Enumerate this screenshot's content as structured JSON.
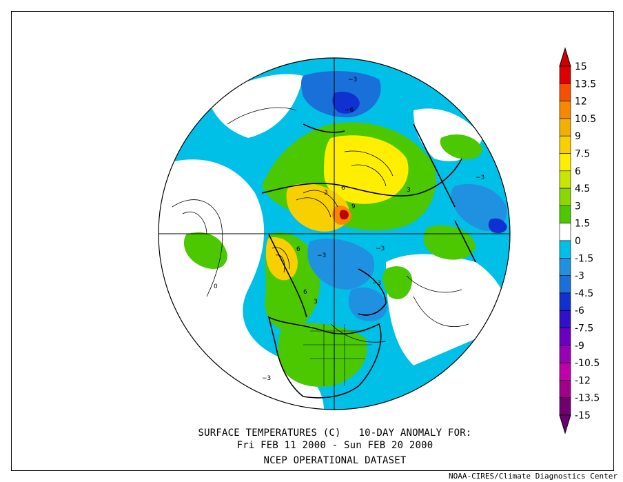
{
  "caption": {
    "line1": "SURFACE TEMPERATURES (C)   10-DAY ANOMALY FOR:",
    "line2": "Fri FEB 11 2000 - Sun FEB 20 2000",
    "line3": "NCEP OPERATIONAL DATASET"
  },
  "credit": "NOAA-CIRES/Climate Diagnostics Center",
  "colorbar": {
    "levels": [
      {
        "label": "15",
        "color": "#a00000"
      },
      {
        "label": "13.5",
        "color": "#dc0000"
      },
      {
        "label": "12",
        "color": "#f45000"
      },
      {
        "label": "10.5",
        "color": "#f88800"
      },
      {
        "label": "9",
        "color": "#f4b000"
      },
      {
        "label": "7.5",
        "color": "#f8d000"
      },
      {
        "label": "6",
        "color": "#ffee00"
      },
      {
        "label": "4.5",
        "color": "#c8e600"
      },
      {
        "label": "3",
        "color": "#8ad800"
      },
      {
        "label": "1.5",
        "color": "#4cc800"
      },
      {
        "label": "0",
        "color": "#ffffff"
      },
      {
        "label": "-1.5",
        "color": "#00c0e8"
      },
      {
        "label": "-3",
        "color": "#2090e0"
      },
      {
        "label": "-4.5",
        "color": "#1870d8"
      },
      {
        "label": "-6",
        "color": "#1030d0"
      },
      {
        "label": "-7.5",
        "color": "#3010c8"
      },
      {
        "label": "-9",
        "color": "#6a00c0"
      },
      {
        "label": "-10.5",
        "color": "#9800b4"
      },
      {
        "label": "-12",
        "color": "#c000a8"
      },
      {
        "label": "-13.5",
        "color": "#a0008c"
      },
      {
        "label": "-15",
        "color": "#700070"
      }
    ],
    "top_cap_color": "#d00000",
    "bottom_cap_color": "#6a0070"
  },
  "map": {
    "projection": "north-polar-stereographic",
    "ocean_color": "#00c0e8",
    "contour_labels": [
      "-3",
      "0",
      "3",
      "6",
      "9",
      "-6"
    ]
  }
}
